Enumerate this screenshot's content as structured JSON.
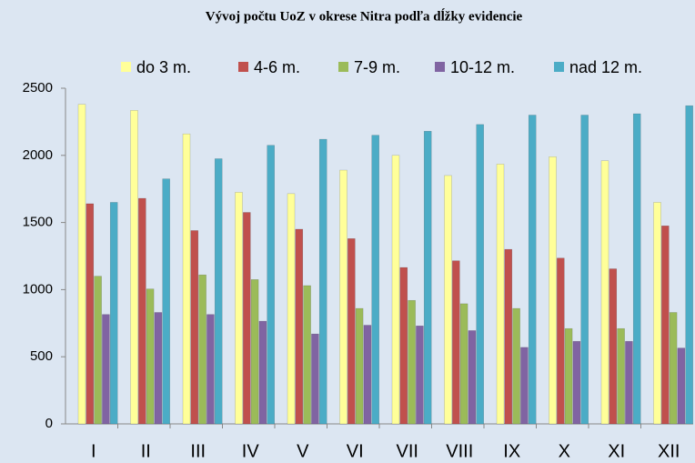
{
  "chart_data": {
    "type": "bar",
    "title": "Vývoj počtu UoZ v okrese Nitra podľa dĺžky evidencie",
    "categories": [
      "I",
      "II",
      "III",
      "IV",
      "V",
      "VI",
      "VII",
      "VIII",
      "IX",
      "X",
      "XI",
      "XII"
    ],
    "series": [
      {
        "name": "do 3 m.",
        "color": "#ffff99",
        "values": [
          2380,
          2335,
          2160,
          1725,
          1715,
          1890,
          2000,
          1850,
          1935,
          1990,
          1960,
          1650
        ]
      },
      {
        "name": "4-6 m.",
        "color": "#c0504d",
        "values": [
          1640,
          1680,
          1440,
          1575,
          1450,
          1380,
          1165,
          1215,
          1300,
          1235,
          1155,
          1475
        ]
      },
      {
        "name": "7-9 m.",
        "color": "#9bbb59",
        "values": [
          1100,
          1005,
          1110,
          1075,
          1030,
          860,
          920,
          895,
          860,
          710,
          710,
          830
        ]
      },
      {
        "name": "10-12 m.",
        "color": "#8064a2",
        "values": [
          815,
          830,
          815,
          765,
          670,
          735,
          730,
          695,
          570,
          615,
          615,
          565
        ]
      },
      {
        "name": "nad 12 m.",
        "color": "#4bacc6",
        "values": [
          1650,
          1825,
          1975,
          2075,
          2120,
          2150,
          2180,
          2230,
          2300,
          2300,
          2310,
          2370
        ]
      }
    ],
    "ylim": [
      0,
      2500
    ],
    "yticks": [
      0,
      500,
      1000,
      1500,
      2000,
      2500
    ],
    "grid": false,
    "legend": "top"
  }
}
